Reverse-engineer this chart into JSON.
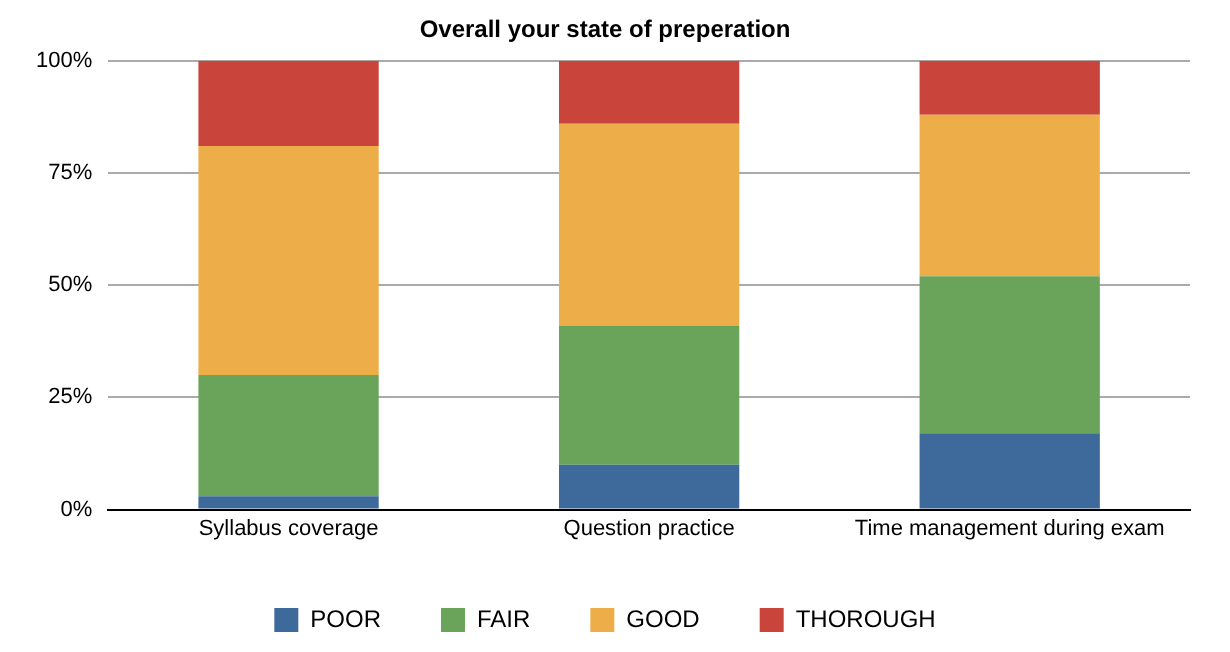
{
  "chart_data": {
    "type": "bar",
    "title": "Overall your state of preperation",
    "categories": [
      "Syllabus coverage",
      "Question practice",
      "Time management during exam"
    ],
    "stacked": true,
    "series": [
      {
        "name": "POOR",
        "color": "#3d6a9b",
        "values": [
          3,
          10,
          17
        ]
      },
      {
        "name": "FAIR",
        "color": "#6aa45a",
        "values": [
          27,
          31,
          35
        ]
      },
      {
        "name": "GOOD",
        "color": "#edae4a",
        "values": [
          51,
          45,
          36
        ]
      },
      {
        "name": "THOROUGH",
        "color": "#c9443b",
        "values": [
          19,
          14,
          12
        ]
      }
    ],
    "ylim": [
      0,
      100
    ],
    "yticks": [
      {
        "value": 0,
        "label": "0%"
      },
      {
        "value": 25,
        "label": "25%"
      },
      {
        "value": 50,
        "label": "50%"
      },
      {
        "value": 75,
        "label": "75%"
      },
      {
        "value": 100,
        "label": "100%"
      }
    ],
    "grid": "y",
    "legend": "bottom"
  }
}
